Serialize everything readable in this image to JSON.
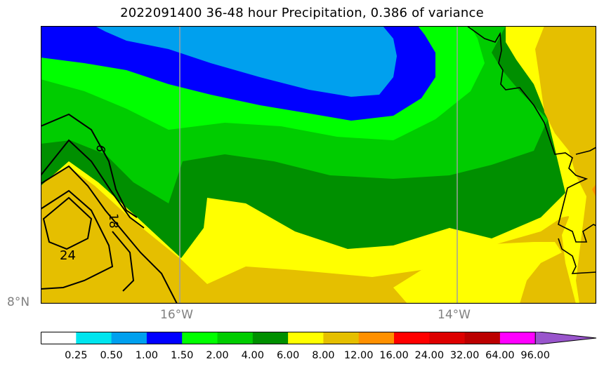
{
  "title": "2022091400 36-48 hour Precipitation, 0.386 of variance",
  "map": {
    "lat_label": "8°N",
    "lon_labels": [
      "16°W",
      "14°W"
    ],
    "contour_labels": [
      "6",
      "18",
      "24"
    ]
  },
  "colorbar": {
    "ticks": [
      "0.25",
      "0.50",
      "1.00",
      "1.50",
      "2.00",
      "4.00",
      "6.00",
      "8.00",
      "12.00",
      "16.00",
      "24.00",
      "32.00",
      "64.00",
      "96.00"
    ],
    "colors": [
      "#ffffff",
      "#00e5ee",
      "#00a0ee",
      "#0000ff",
      "#00ff00",
      "#00cc00",
      "#008f00",
      "#ffff00",
      "#e5bf00",
      "#ff9000",
      "#ff0000",
      "#dd0000",
      "#bb0000",
      "#ff00ff",
      "#9955cc"
    ]
  }
}
